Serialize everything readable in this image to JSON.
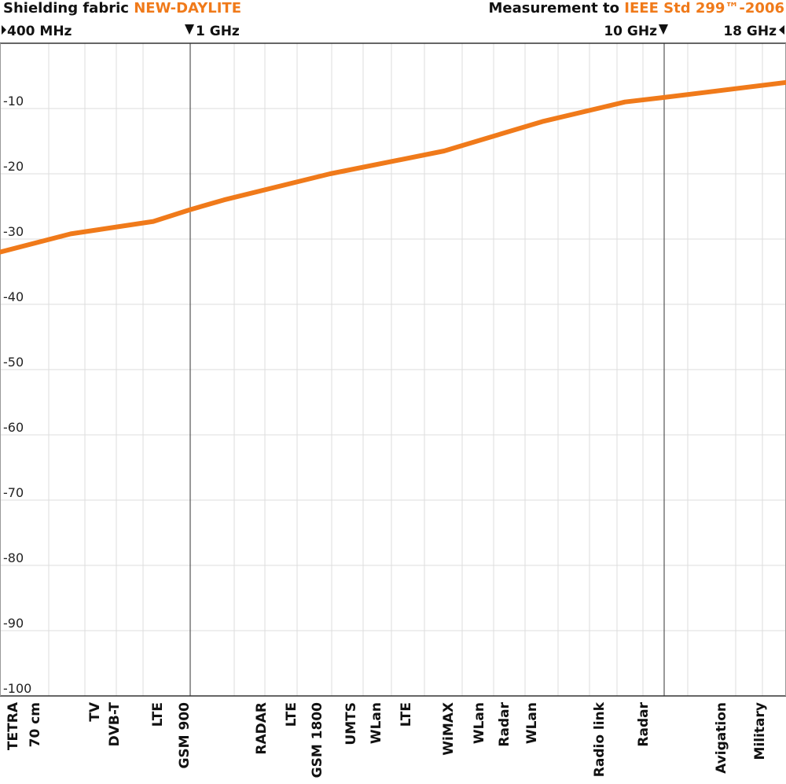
{
  "header": {
    "title_prefix": "Shielding fabric ",
    "title_product": "NEW-DAYLITE",
    "measurement_prefix": "Measurement to ",
    "measurement_standard": "IEEE Std 299™-2006"
  },
  "markers": {
    "m400": "400 MHz",
    "m1g": "1 GHz",
    "m10g": "10 GHz",
    "m18g": "18 GHz"
  },
  "colors": {
    "curve": "#f07a1a",
    "grid": "#dddddd",
    "axis": "#333333"
  },
  "chart_data": {
    "type": "line",
    "title": "Shielding fabric NEW-DAYLITE",
    "xlabel": "",
    "ylabel": "",
    "ylim": [
      -100,
      0
    ],
    "y_ticks": [
      -10,
      -20,
      -30,
      -40,
      -50,
      -60,
      -70,
      -80,
      -90,
      -100
    ],
    "grid": true,
    "band_labels": [
      "TETRA\n70 cm",
      "TV",
      "DVB-T",
      "LTE",
      "GSM 900",
      "RADAR",
      "LTE",
      "GSM 1800",
      "UMTS",
      "WLan",
      "LTE",
      "WiMAX",
      "WLan",
      "Radar",
      "WLan",
      "Radio link",
      "Radar",
      "Avigation",
      "Military"
    ],
    "series": [
      {
        "values": [
          -32,
          -29.2,
          -27.3,
          -25.5,
          -24,
          -20,
          -16.5,
          -12,
          -9,
          -8.3,
          -6
        ]
      }
    ]
  }
}
